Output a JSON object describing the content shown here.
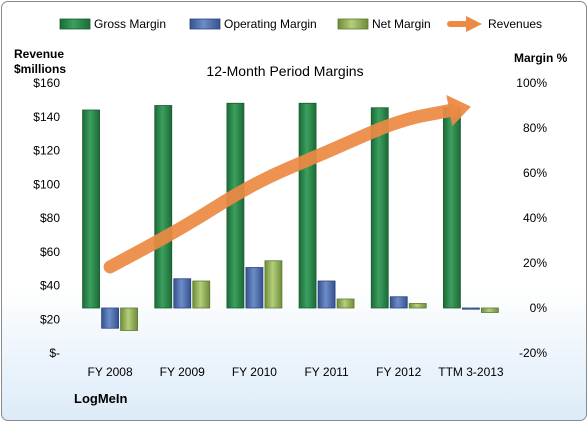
{
  "chart_data": {
    "type": "bar",
    "title": "12-Month Period Margins",
    "company": "LogMeIn",
    "left_axis_label": [
      "Revenue",
      "$millions"
    ],
    "right_axis_label": "Margin %",
    "left_axis": {
      "ylim": [
        0,
        160
      ],
      "ticks": [
        0,
        20,
        40,
        60,
        80,
        100,
        120,
        140,
        160
      ],
      "tick_labels": [
        "$-",
        "$20",
        "$40",
        "$60",
        "$80",
        "$100",
        "$120",
        "$140",
        "$160"
      ]
    },
    "right_axis": {
      "ylim": [
        -20,
        100
      ],
      "ticks": [
        -20,
        0,
        20,
        40,
        60,
        80,
        100
      ],
      "tick_labels": [
        "-20%",
        "0%",
        "20%",
        "40%",
        "60%",
        "80%",
        "100%"
      ]
    },
    "categories": [
      "FY 2008",
      "FY 2009",
      "FY 2010",
      "FY 2011",
      "FY 2012",
      "TTM 3-2013"
    ],
    "series": [
      {
        "name": "Gross Margin",
        "type": "bar",
        "axis": "right",
        "color": "#2e8b4e",
        "values": [
          88,
          90,
          91,
          91,
          89,
          89
        ]
      },
      {
        "name": "Operating Margin",
        "type": "bar",
        "axis": "right",
        "color": "#4f6fb0",
        "values": [
          -9,
          13,
          18,
          12,
          5,
          0
        ]
      },
      {
        "name": "Net Margin",
        "type": "bar",
        "axis": "right",
        "color": "#93b55a",
        "values": [
          -10,
          12,
          21,
          4,
          2,
          -2
        ]
      },
      {
        "name": "Revenues",
        "type": "line",
        "axis": "left",
        "color": "#ec8a44",
        "values": [
          51,
          74,
          101,
          119,
          138,
          146
        ]
      }
    ],
    "grid": false,
    "legend_position": "top"
  }
}
